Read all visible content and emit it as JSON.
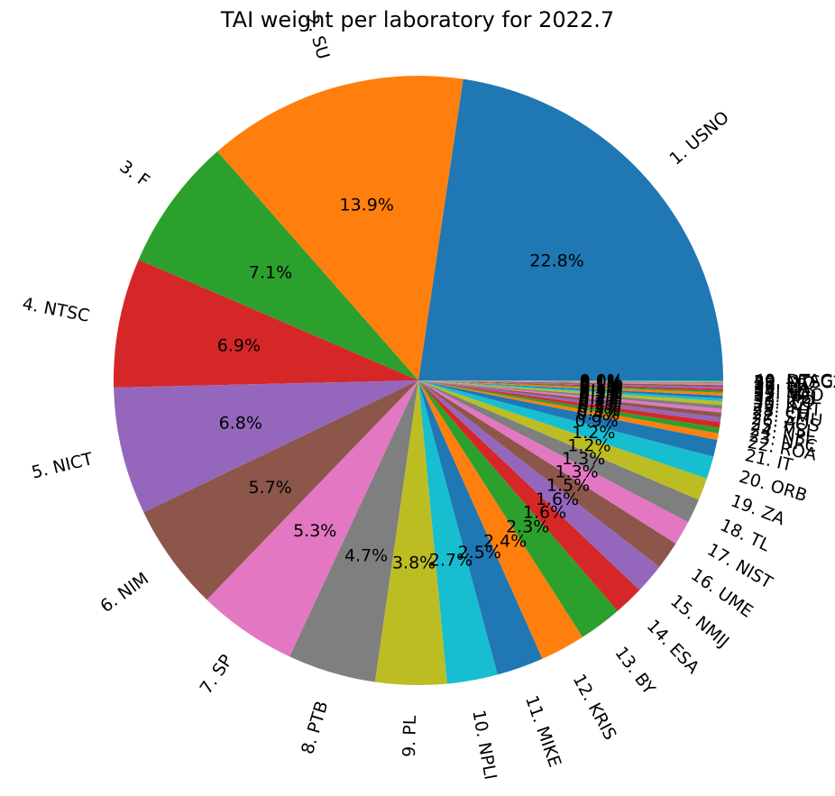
{
  "chart_data": {
    "type": "pie",
    "title": "TAI weight per laboratory for 2022.7",
    "categories": [
      "1. USNO",
      "2. SU",
      "3. F",
      "4. NTSC",
      "5. NICT",
      "6. NIM",
      "7. SP",
      "8. PTB",
      "9. PL",
      "10. NPLI",
      "11. MIKE",
      "12. KRIS",
      "13. BY",
      "14. ESA",
      "15. NMIJ",
      "16. UME",
      "17. NIST",
      "18. TL",
      "19. ZA",
      "20. ORB",
      "21. IT",
      "22. ROA",
      "23. NRC",
      "24. NPL",
      "25. VSL",
      "26. AOS",
      "27. SMU",
      "28. CH",
      "29. INTI",
      "30. KZ",
      "31. IPQ",
      "32. MSL",
      "33. NAO",
      "34. SG",
      "35. TP",
      "36. UA",
      "37. LT",
      "38. SIQ",
      "39. NTSC2",
      "40. DTAG"
    ],
    "values": [
      22.8,
      13.9,
      7.1,
      6.9,
      6.8,
      5.7,
      5.3,
      4.7,
      3.8,
      2.7,
      2.5,
      2.4,
      2.3,
      1.6,
      1.6,
      1.5,
      1.3,
      1.3,
      1.2,
      1.2,
      0.9,
      0.35,
      0.3,
      0.3,
      0.25,
      0.25,
      0.2,
      0.2,
      0.2,
      0.15,
      0.15,
      0.15,
      0.1,
      0.1,
      0.1,
      0.1,
      0.1,
      0.05,
      0.05,
      0.05
    ],
    "pct_labels": [
      "22.8%",
      "13.9%",
      "7.1%",
      "6.9%",
      "6.8%",
      "5.7%",
      "5.3%",
      "4.7%",
      "3.8%",
      "2.7%",
      "2.5%",
      "2.4%",
      "2.3%",
      "1.6%",
      "1.6%",
      "1.5%",
      "1.3%",
      "1.3%",
      "1.2%",
      "1.2%",
      "0.9%",
      "0.4%",
      "0.3%",
      "0.3%",
      "0.2%",
      "0.2%",
      "0.2%",
      "0.2%",
      "0.2%",
      "0.1%",
      "0.1%",
      "0.1%",
      "0.1%",
      "0.1%",
      "0.1%",
      "0.1%",
      "0.1%",
      "0.0%",
      "0.0%",
      "0.0%"
    ],
    "colors": [
      "#1f77b4",
      "#ff7f0e",
      "#2ca02c",
      "#d62728",
      "#9467bd",
      "#8c564b",
      "#e377c2",
      "#7f7f7f",
      "#bcbd22",
      "#17becf"
    ],
    "start_angle_deg": 0,
    "direction": "counterclockwise",
    "legend": "none"
  }
}
